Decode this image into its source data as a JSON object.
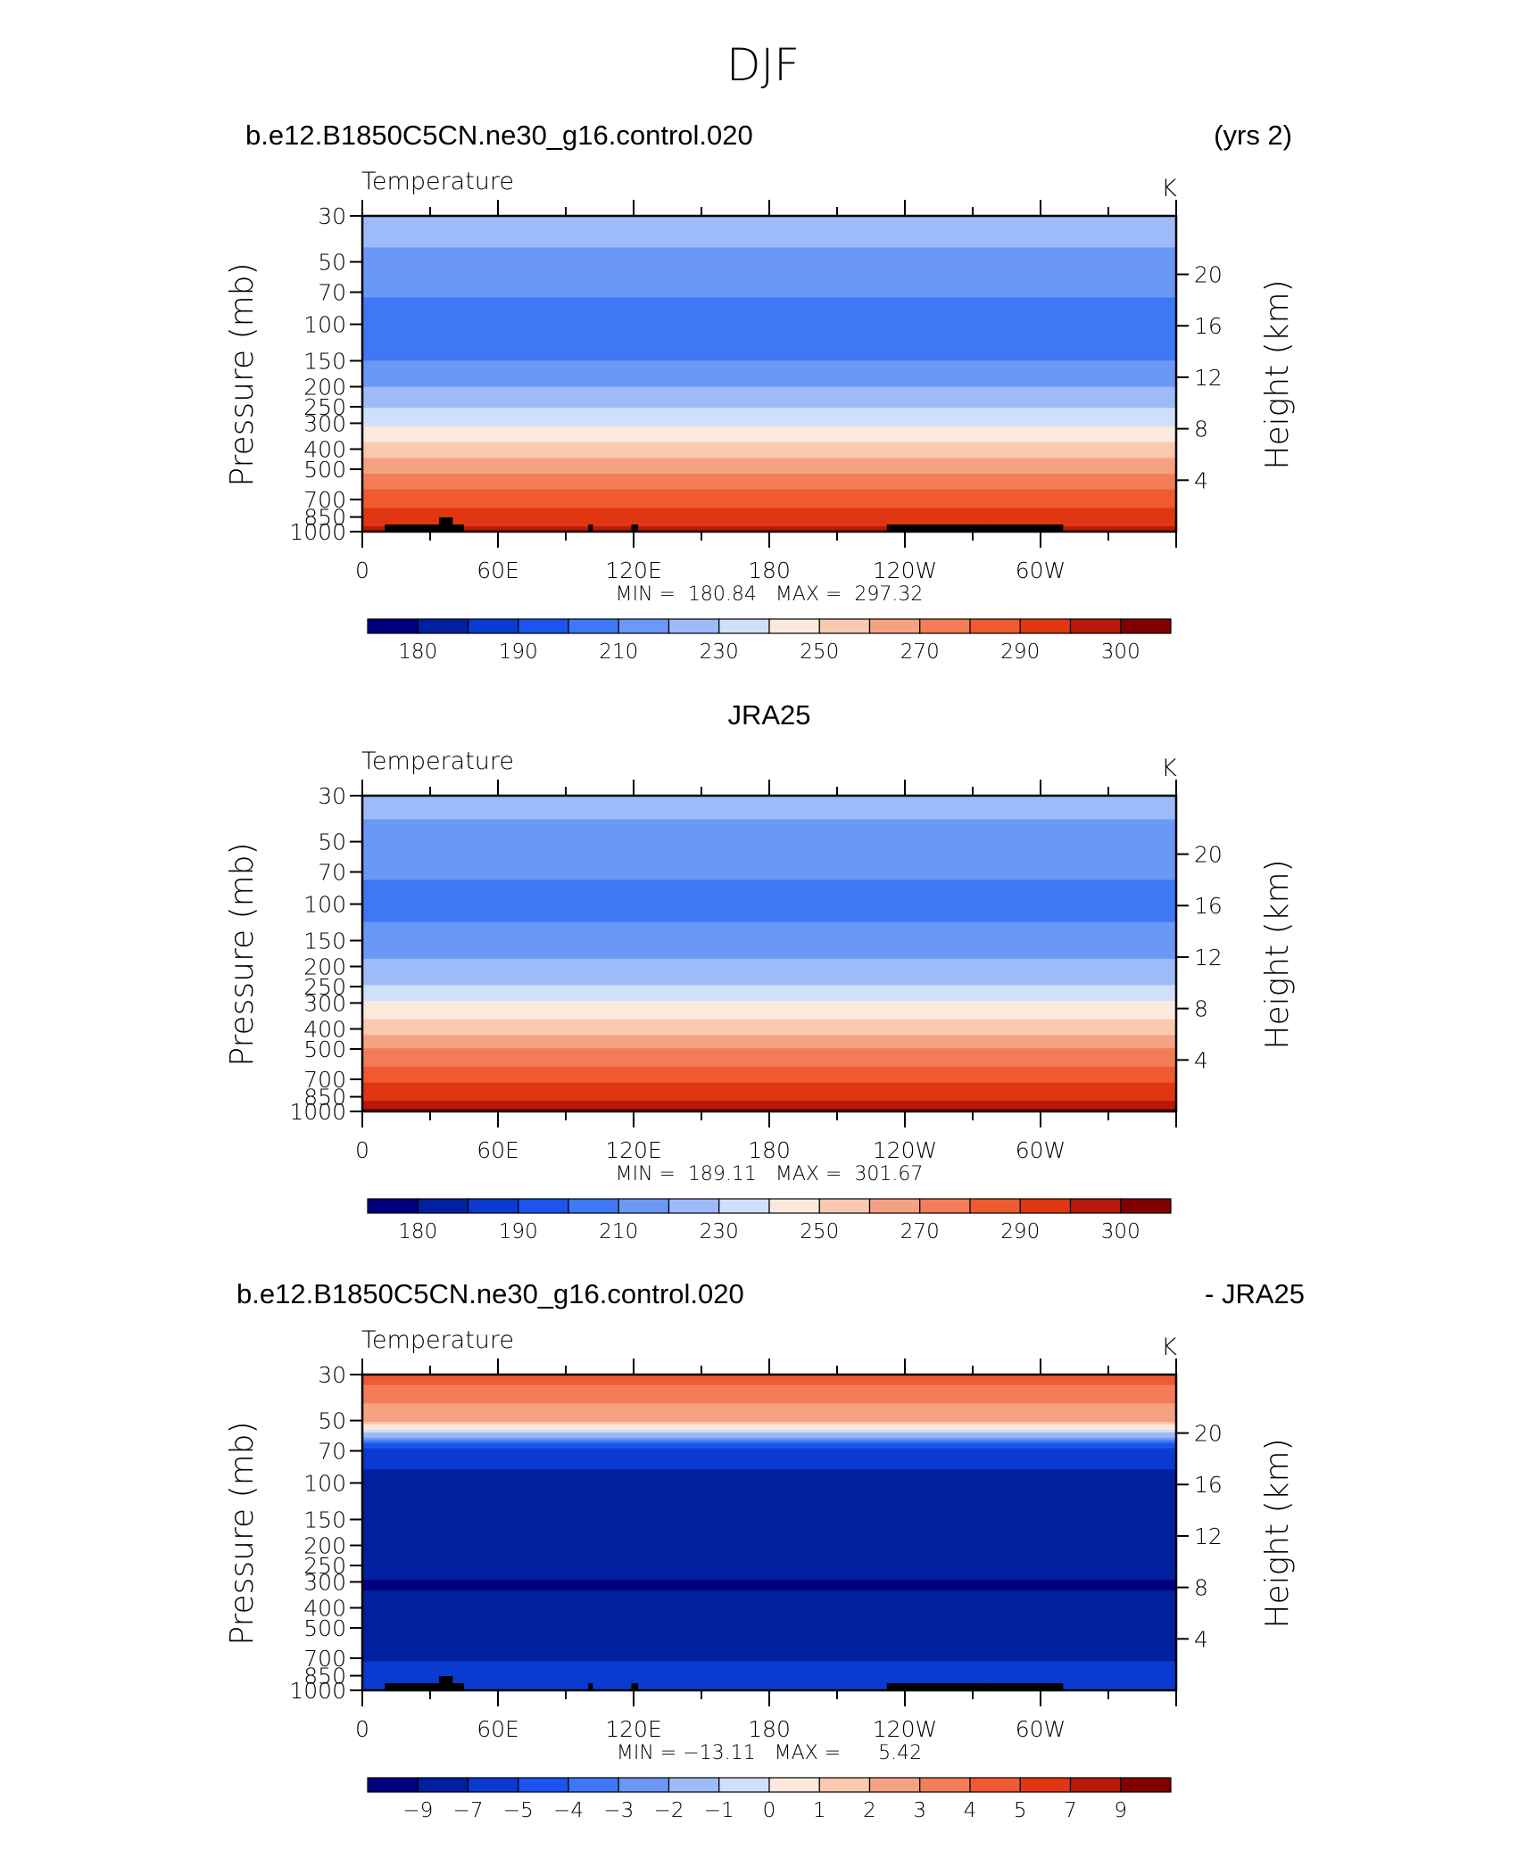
{
  "figure_title": "DJF",
  "colors": {
    "abs_palette": [
      "#00007f",
      "#0020a0",
      "#0a3ad0",
      "#1b54f0",
      "#3f78f5",
      "#6b98f7",
      "#9dbbf8",
      "#cfe0fb",
      "#fbe9dd",
      "#f9c9b0",
      "#f5a283",
      "#f37d58",
      "#ef5a30",
      "#e03712",
      "#b8190b",
      "#820000"
    ],
    "diff_palette": [
      "#00007f",
      "#0020a0",
      "#0a3ad0",
      "#1b54f0",
      "#3f78f5",
      "#6b98f7",
      "#9dbbf8",
      "#cfe0fb",
      "#fbe9dd",
      "#f9c9b0",
      "#f5a283",
      "#f37d58",
      "#ef5a30",
      "#e03712",
      "#b8190b",
      "#820000"
    ],
    "topography": "#000000"
  },
  "chart_data": [
    {
      "type": "contour",
      "header_left": "b.e12.B1850C5CN.ne30_g16.control.020",
      "header_right": "(yrs 2)",
      "header_center": "",
      "variable": "Temperature",
      "units": "K",
      "ylabel": "Pressure  (mb)",
      "ylabel_right": "Height  (km)",
      "pressure_ticks": [
        "30",
        "50",
        "70",
        "100",
        "150",
        "200",
        "250",
        "300",
        "400",
        "500",
        "700",
        "850",
        "1000"
      ],
      "pressure_values": [
        30,
        50,
        70,
        100,
        150,
        200,
        250,
        300,
        400,
        500,
        700,
        850,
        1000
      ],
      "height_ticks": [
        "20",
        "16",
        "12",
        "8",
        "4"
      ],
      "height_values": [
        20,
        16,
        12,
        8,
        4
      ],
      "x_ticks": [
        "0",
        "60E",
        "120E",
        "180",
        "120W",
        "60W"
      ],
      "x_values": [
        0,
        60,
        120,
        180,
        240,
        300
      ],
      "xlim": [
        0,
        360
      ],
      "stats_text": "MIN =  180.84   MAX =  297.32",
      "min": 180.84,
      "max": 297.32,
      "colorbar_labels": [
        "180",
        "190",
        "210",
        "230",
        "250",
        "270",
        "290",
        "300"
      ],
      "levels": [
        175,
        180,
        185,
        190,
        200,
        210,
        220,
        230,
        240,
        250,
        260,
        270,
        280,
        290,
        295,
        300
      ],
      "profile_p": [
        30,
        50,
        70,
        100,
        150,
        200,
        250,
        300,
        400,
        500,
        700,
        850,
        1000
      ],
      "profile_t": [
        214,
        208,
        201,
        193,
        200,
        210,
        219,
        228,
        244,
        258,
        276,
        285,
        292
      ],
      "topography": true
    },
    {
      "type": "contour",
      "header_left": "",
      "header_right": "",
      "header_center": "JRA25",
      "variable": "Temperature",
      "units": "K",
      "ylabel": "Pressure  (mb)",
      "ylabel_right": "Height  (km)",
      "pressure_ticks": [
        "30",
        "50",
        "70",
        "100",
        "150",
        "200",
        "250",
        "300",
        "400",
        "500",
        "700",
        "850",
        "1000"
      ],
      "pressure_values": [
        30,
        50,
        70,
        100,
        150,
        200,
        250,
        300,
        400,
        500,
        700,
        850,
        1000
      ],
      "height_ticks": [
        "20",
        "16",
        "12",
        "8",
        "4"
      ],
      "height_values": [
        20,
        16,
        12,
        8,
        4
      ],
      "x_ticks": [
        "0",
        "60E",
        "120E",
        "180",
        "120W",
        "60W"
      ],
      "x_values": [
        0,
        60,
        120,
        180,
        240,
        300
      ],
      "xlim": [
        0,
        360
      ],
      "stats_text": "MIN =  189.11   MAX =  301.67",
      "min": 189.11,
      "max": 301.67,
      "colorbar_labels": [
        "180",
        "190",
        "210",
        "230",
        "250",
        "270",
        "290",
        "300"
      ],
      "levels": [
        175,
        180,
        185,
        190,
        200,
        210,
        220,
        230,
        240,
        250,
        260,
        270,
        280,
        290,
        295,
        300
      ],
      "profile_p": [
        30,
        50,
        70,
        100,
        150,
        200,
        250,
        300,
        400,
        500,
        700,
        850,
        1000
      ],
      "profile_t": [
        214,
        206,
        201,
        197,
        203,
        213,
        221,
        231,
        246,
        260,
        278,
        288,
        297
      ],
      "topography": false
    },
    {
      "type": "contour",
      "header_left": "b.e12.B1850C5CN.ne30_g16.control.020",
      "header_right": "- JRA25",
      "header_center": "",
      "variable": "Temperature",
      "units": "K",
      "ylabel": "Pressure  (mb)",
      "ylabel_right": "Height  (km)",
      "pressure_ticks": [
        "30",
        "50",
        "70",
        "100",
        "150",
        "200",
        "250",
        "300",
        "400",
        "500",
        "700",
        "850",
        "1000"
      ],
      "pressure_values": [
        30,
        50,
        70,
        100,
        150,
        200,
        250,
        300,
        400,
        500,
        700,
        850,
        1000
      ],
      "height_ticks": [
        "20",
        "16",
        "12",
        "8",
        "4"
      ],
      "height_values": [
        20,
        16,
        12,
        8,
        4
      ],
      "x_ticks": [
        "0",
        "60E",
        "120E",
        "180",
        "120W",
        "60W"
      ],
      "x_values": [
        0,
        60,
        120,
        180,
        240,
        300
      ],
      "xlim": [
        0,
        360
      ],
      "stats_text": "MIN = −13.11   MAX =      5.42",
      "min": -13.11,
      "max": 5.42,
      "colorbar_labels": [
        "−9",
        "−7",
        "−5",
        "−4",
        "−3",
        "−2",
        "−1",
        "0",
        "1",
        "2",
        "3",
        "4",
        "5",
        "7",
        "9"
      ],
      "levels": [
        -9,
        -7,
        -5,
        -4,
        -3,
        -2,
        -1,
        0,
        1,
        2,
        3,
        4,
        5,
        7,
        9
      ],
      "profile_p": [
        30,
        50,
        70,
        100,
        150,
        200,
        250,
        300,
        400,
        500,
        700,
        850,
        1000
      ],
      "profile_t": [
        4.5,
        2.2,
        -5.8,
        -7.8,
        -7.3,
        -8.2,
        -8.6,
        -9.1,
        -8.8,
        -8.4,
        -7.4,
        -5.3,
        -5.8
      ],
      "topography": true
    }
  ]
}
